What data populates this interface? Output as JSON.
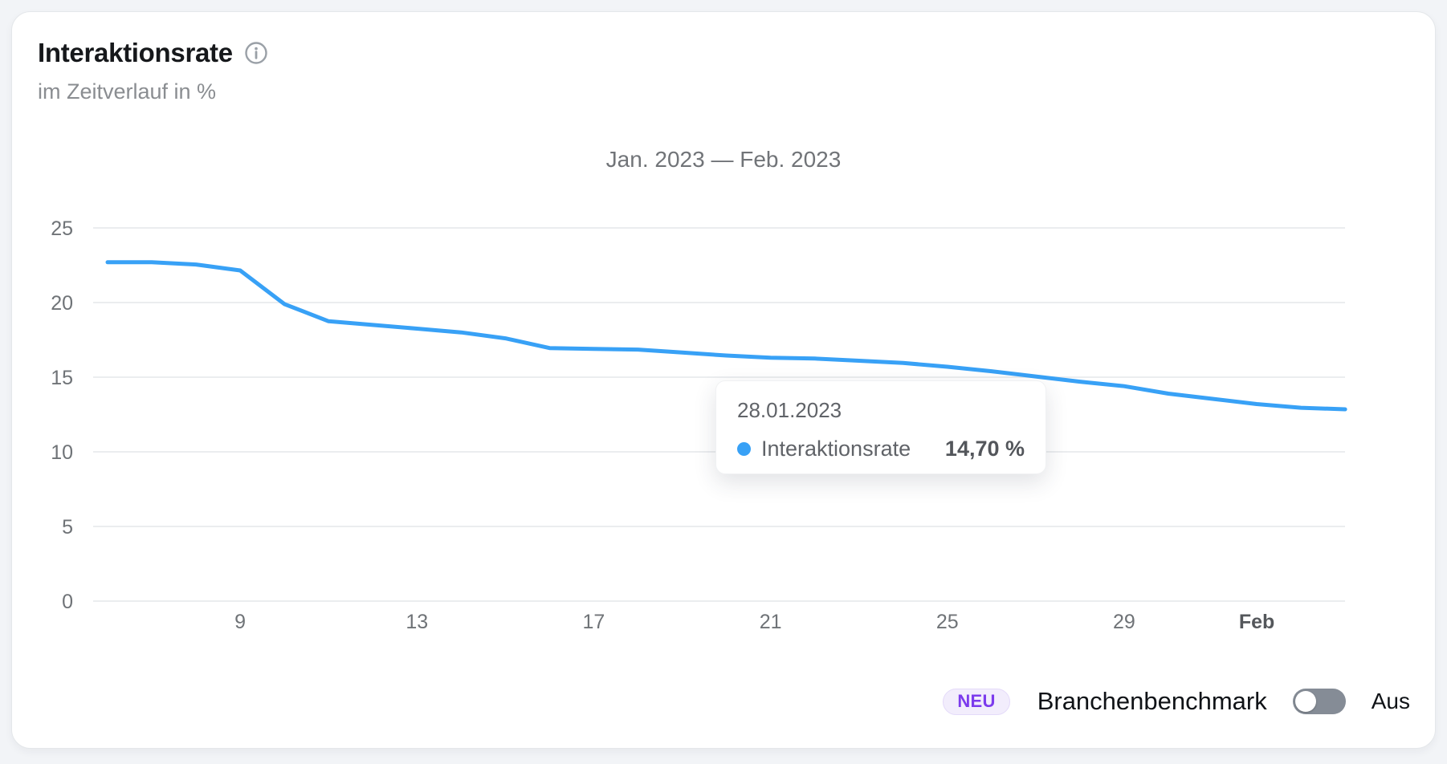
{
  "card": {
    "title": "Interaktionsrate",
    "subtitle": "im Zeitverlauf in %"
  },
  "chart_data": {
    "type": "line",
    "title": "Jan. 2023 — Feb. 2023",
    "unit": "%",
    "grid": "horizontal",
    "legend_position": "none",
    "ylim": [
      0,
      26.5
    ],
    "y_ticks": [
      0,
      5,
      10,
      15,
      20,
      25
    ],
    "x_tick_labels": [
      "9",
      "13",
      "17",
      "21",
      "25",
      "29",
      "Feb"
    ],
    "x_tick_indices": [
      3,
      7,
      11,
      15,
      19,
      23,
      26
    ],
    "x": [
      "06.01.2023",
      "07.01.2023",
      "08.01.2023",
      "09.01.2023",
      "10.01.2023",
      "11.01.2023",
      "12.01.2023",
      "13.01.2023",
      "14.01.2023",
      "15.01.2023",
      "16.01.2023",
      "17.01.2023",
      "18.01.2023",
      "19.01.2023",
      "20.01.2023",
      "21.01.2023",
      "22.01.2023",
      "23.01.2023",
      "24.01.2023",
      "25.01.2023",
      "26.01.2023",
      "27.01.2023",
      "28.01.2023",
      "29.01.2023",
      "30.01.2023",
      "31.01.2023",
      "01.02.2023",
      "02.02.2023",
      "03.02.2023"
    ],
    "series": [
      {
        "name": "Interaktionsrate",
        "color": "#38a1f6",
        "values": [
          22.7,
          22.7,
          22.55,
          22.15,
          19.9,
          18.75,
          18.5,
          18.25,
          18.0,
          17.6,
          16.95,
          16.9,
          16.85,
          16.65,
          16.45,
          16.3,
          16.25,
          16.1,
          15.95,
          15.7,
          15.4,
          15.05,
          14.7,
          14.4,
          13.9,
          13.55,
          13.2,
          12.95,
          12.85
        ]
      }
    ]
  },
  "tooltip": {
    "date": "28.01.2023",
    "series_label": "Interaktionsrate",
    "value": "14,70 %",
    "dot_color": "#38a1f6"
  },
  "benchmark": {
    "badge": "NEU",
    "label": "Branchenbenchmark",
    "state": "Aus"
  },
  "colors": {
    "line": "#38a1f6",
    "grid": "#ebedef",
    "accent_purple": "#7c3bed"
  }
}
